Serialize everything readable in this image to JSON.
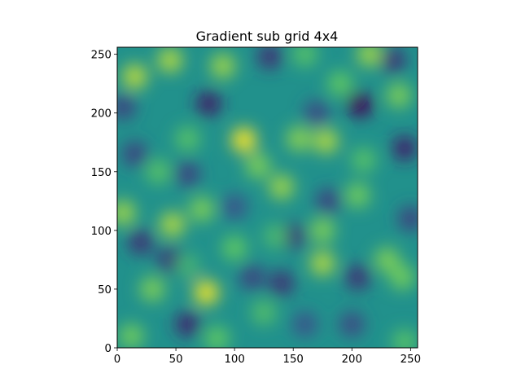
{
  "chart_data": {
    "type": "heatmap",
    "title": "Gradient sub grid 4x4",
    "xlabel": "",
    "ylabel": "",
    "xlim": [
      0,
      256
    ],
    "ylim": [
      0,
      256
    ],
    "origin": "lower",
    "colormap": "viridis",
    "grid": false,
    "legend": "none",
    "xticks": [
      0,
      50,
      100,
      150,
      200,
      250
    ],
    "yticks": [
      0,
      50,
      100,
      150,
      200,
      250
    ],
    "xtick_labels": [
      "0",
      "50",
      "100",
      "150",
      "200",
      "250"
    ],
    "ytick_labels": [
      "0",
      "50",
      "100",
      "150",
      "200",
      "250"
    ],
    "value_range": [
      0,
      1
    ],
    "background_value": 0.5,
    "hot_spots": [
      {
        "x": 108,
        "y": 177,
        "value": 1.0
      },
      {
        "x": 76,
        "y": 47,
        "value": 0.98
      },
      {
        "x": 178,
        "y": 176,
        "value": 0.88
      },
      {
        "x": 140,
        "y": 137,
        "value": 0.85
      },
      {
        "x": 120,
        "y": 155,
        "value": 0.8
      },
      {
        "x": 47,
        "y": 105,
        "value": 0.88
      },
      {
        "x": 72,
        "y": 118,
        "value": 0.8
      },
      {
        "x": 15,
        "y": 231,
        "value": 0.9
      },
      {
        "x": 45,
        "y": 245,
        "value": 0.88
      },
      {
        "x": 90,
        "y": 240,
        "value": 0.85
      },
      {
        "x": 155,
        "y": 178,
        "value": 0.82
      },
      {
        "x": 175,
        "y": 72,
        "value": 0.88
      },
      {
        "x": 175,
        "y": 100,
        "value": 0.8
      },
      {
        "x": 215,
        "y": 250,
        "value": 0.85
      },
      {
        "x": 190,
        "y": 225,
        "value": 0.75
      },
      {
        "x": 240,
        "y": 215,
        "value": 0.8
      },
      {
        "x": 30,
        "y": 50,
        "value": 0.8
      },
      {
        "x": 12,
        "y": 10,
        "value": 0.78
      },
      {
        "x": 85,
        "y": 8,
        "value": 0.75
      },
      {
        "x": 125,
        "y": 30,
        "value": 0.7
      },
      {
        "x": 230,
        "y": 75,
        "value": 0.8
      },
      {
        "x": 243,
        "y": 60,
        "value": 0.78
      },
      {
        "x": 100,
        "y": 85,
        "value": 0.75
      },
      {
        "x": 205,
        "y": 130,
        "value": 0.78
      },
      {
        "x": 210,
        "y": 160,
        "value": 0.72
      },
      {
        "x": 60,
        "y": 178,
        "value": 0.72
      },
      {
        "x": 35,
        "y": 150,
        "value": 0.72
      },
      {
        "x": 5,
        "y": 115,
        "value": 0.85
      },
      {
        "x": 160,
        "y": 250,
        "value": 0.72
      },
      {
        "x": 245,
        "y": 5,
        "value": 0.72
      },
      {
        "x": 135,
        "y": 95,
        "value": 0.68
      },
      {
        "x": 60,
        "y": 70,
        "value": 0.65
      }
    ],
    "cold_spots": [
      {
        "x": 207,
        "y": 207,
        "value": 0.0
      },
      {
        "x": 78,
        "y": 208,
        "value": 0.08
      },
      {
        "x": 60,
        "y": 20,
        "value": 0.12
      },
      {
        "x": 20,
        "y": 90,
        "value": 0.15
      },
      {
        "x": 150,
        "y": 95,
        "value": 0.15
      },
      {
        "x": 140,
        "y": 55,
        "value": 0.15
      },
      {
        "x": 245,
        "y": 170,
        "value": 0.1
      },
      {
        "x": 5,
        "y": 205,
        "value": 0.2
      },
      {
        "x": 130,
        "y": 248,
        "value": 0.15
      },
      {
        "x": 235,
        "y": 245,
        "value": 0.15
      },
      {
        "x": 205,
        "y": 60,
        "value": 0.15
      },
      {
        "x": 45,
        "y": 75,
        "value": 0.15
      },
      {
        "x": 60,
        "y": 148,
        "value": 0.2
      },
      {
        "x": 15,
        "y": 165,
        "value": 0.2
      },
      {
        "x": 180,
        "y": 125,
        "value": 0.2
      },
      {
        "x": 115,
        "y": 60,
        "value": 0.2
      },
      {
        "x": 200,
        "y": 20,
        "value": 0.22
      },
      {
        "x": 250,
        "y": 110,
        "value": 0.2
      },
      {
        "x": 170,
        "y": 200,
        "value": 0.22
      },
      {
        "x": 100,
        "y": 120,
        "value": 0.25
      },
      {
        "x": 160,
        "y": 20,
        "value": 0.25
      }
    ]
  }
}
